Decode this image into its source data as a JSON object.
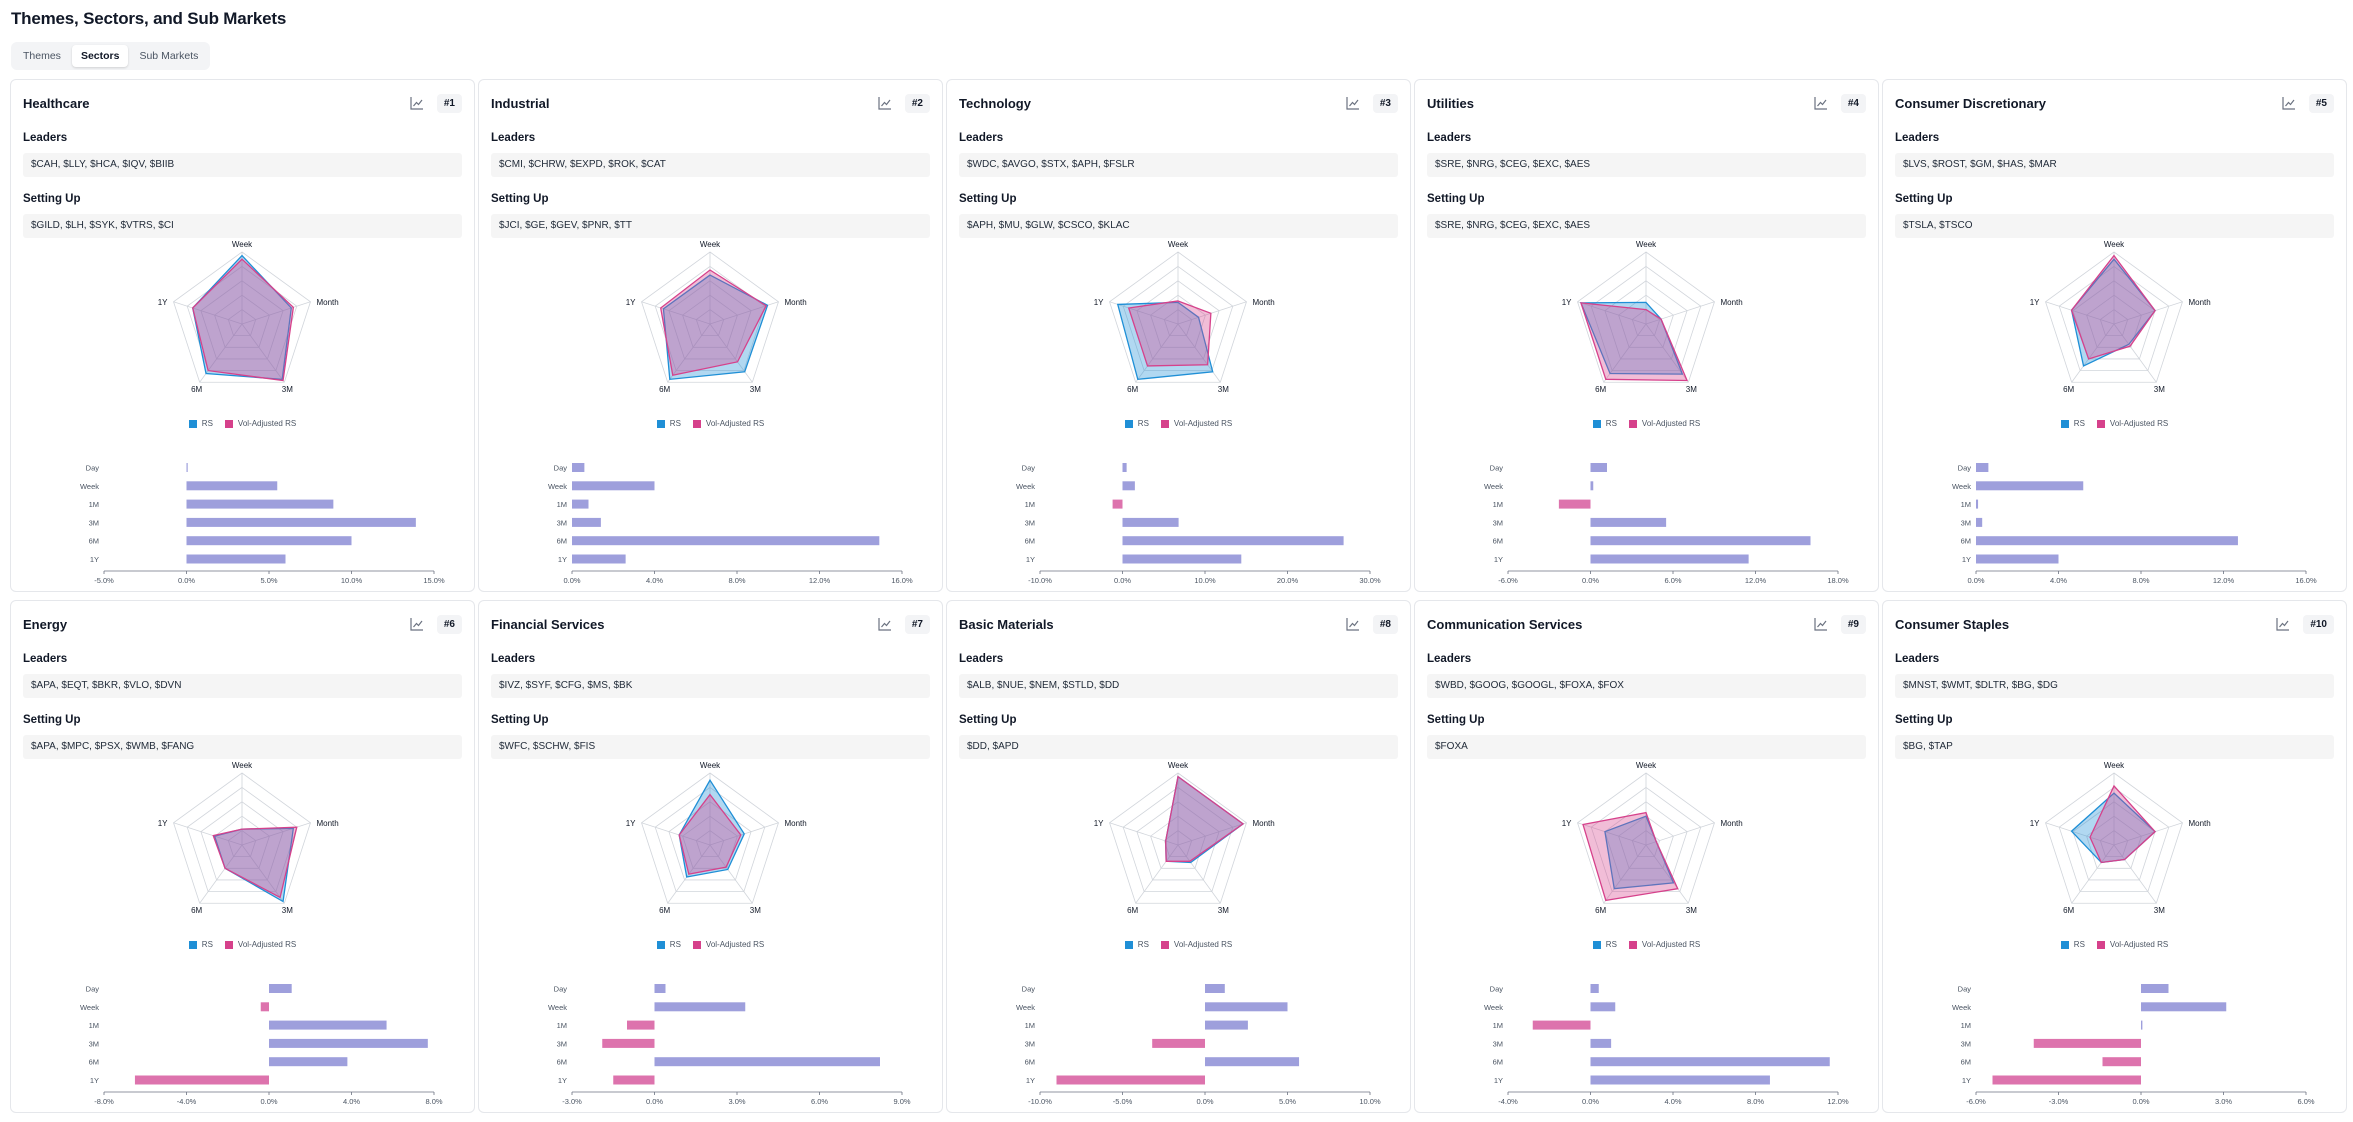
{
  "page": {
    "title": "Themes, Sectors, and Sub Markets"
  },
  "tabs": [
    {
      "label": "Themes",
      "active": false
    },
    {
      "label": "Sectors",
      "active": true
    },
    {
      "label": "Sub Markets",
      "active": false
    }
  ],
  "labels": {
    "leaders": "Leaders",
    "setting_up": "Setting Up"
  },
  "legend": {
    "rs": "RS",
    "vol_adjusted_rs": "Vol-Adjusted RS"
  },
  "colors": {
    "rs": "#1f8fd6",
    "vol_rs": "#d6418b",
    "bar_positive": "#9e9fdc",
    "bar_negative": "#dd73ad"
  },
  "radar_axes": [
    "Week",
    "Month",
    "3M",
    "6M",
    "1Y"
  ],
  "bar_categories": [
    "Day",
    "Week",
    "1M",
    "3M",
    "6M",
    "1Y"
  ],
  "sectors": [
    {
      "name": "Healthcare",
      "rank": "#1",
      "leaders": "$CAH, $LLY, $HCA, $IQV, $BIIB",
      "setting_up": "$GILD, $LH, $SYK, $VTRS, $CI",
      "radar": {
        "rs": [
          0.95,
          0.72,
          0.95,
          0.85,
          0.72
        ],
        "vol_rs": [
          0.9,
          0.75,
          0.97,
          0.8,
          0.72
        ]
      },
      "bars": {
        "values": [
          0.05,
          5.5,
          8.9,
          13.9,
          10.0,
          6.0
        ],
        "xlim": [
          -5,
          15
        ],
        "ticks": [
          "-5.0%",
          "0.0%",
          "5.0%",
          "10.0%",
          "15.0%"
        ]
      }
    },
    {
      "name": "Industrial",
      "rank": "#2",
      "leaders": "$CMI, $CHRW, $EXPD, $ROK, $CAT",
      "setting_up": "$JCI, $GE, $GEV, $PNR, $TT",
      "radar": {
        "rs": [
          0.68,
          0.84,
          0.82,
          0.95,
          0.68
        ],
        "vol_rs": [
          0.75,
          0.82,
          0.65,
          0.88,
          0.72
        ]
      },
      "bars": {
        "values": [
          0.6,
          4.0,
          0.8,
          1.4,
          14.9,
          2.6
        ],
        "xlim": [
          0,
          16
        ],
        "ticks": [
          "0.0%",
          "4.0%",
          "8.0%",
          "12.0%",
          "16.0%"
        ]
      }
    },
    {
      "name": "Technology",
      "rank": "#3",
      "leaders": "$WDC, $AVGO, $STX, $APH, $FSLR",
      "setting_up": "$APH, $MU, $GLW, $CSCO, $KLAC",
      "radar": {
        "rs": [
          0.3,
          0.3,
          0.82,
          0.95,
          0.88
        ],
        "vol_rs": [
          0.32,
          0.48,
          0.7,
          0.72,
          0.72
        ]
      },
      "bars": {
        "values": [
          0.5,
          1.5,
          -1.2,
          6.8,
          26.8,
          14.4
        ],
        "xlim": [
          -10,
          30
        ],
        "ticks": [
          "-10.0%",
          "0.0%",
          "10.0%",
          "20.0%",
          "30.0%"
        ]
      }
    },
    {
      "name": "Utilities",
      "rank": "#4",
      "leaders": "$SRE, $NRG, $CEG, $EXC, $AES",
      "setting_up": "$SRE, $NRG, $CEG, $EXC, $AES",
      "radar": {
        "rs": [
          0.3,
          0.22,
          0.86,
          0.85,
          0.95
        ],
        "vol_rs": [
          0.2,
          0.22,
          0.97,
          0.95,
          0.95
        ]
      },
      "bars": {
        "values": [
          1.2,
          0.2,
          -2.3,
          5.5,
          16.0,
          11.5
        ],
        "xlim": [
          -6,
          18
        ],
        "ticks": [
          "-6.0%",
          "0.0%",
          "6.0%",
          "12.0%",
          "18.0%"
        ]
      }
    },
    {
      "name": "Consumer Discretionary",
      "rank": "#5",
      "leaders": "$LVS, $ROST, $GM, $HAS, $MAR",
      "setting_up": "$TSLA, $TSCO",
      "radar": {
        "rs": [
          0.9,
          0.6,
          0.35,
          0.72,
          0.62
        ],
        "vol_rs": [
          0.95,
          0.6,
          0.38,
          0.6,
          0.62
        ]
      },
      "bars": {
        "values": [
          0.6,
          5.2,
          0.1,
          0.3,
          12.7,
          4.0
        ],
        "xlim": [
          0,
          16
        ],
        "ticks": [
          "0.0%",
          "4.0%",
          "8.0%",
          "12.0%",
          "16.0%"
        ]
      }
    },
    {
      "name": "Energy",
      "rank": "#6",
      "leaders": "$APA, $EQT, $BKR, $VLO, $DVN",
      "setting_up": "$APA, $MPC, $PSX, $WMB, $FANG",
      "radar": {
        "rs": [
          0.22,
          0.75,
          0.97,
          0.4,
          0.4
        ],
        "vol_rs": [
          0.22,
          0.8,
          0.9,
          0.4,
          0.42
        ]
      },
      "bars": {
        "values": [
          1.1,
          -0.4,
          5.7,
          7.7,
          3.8,
          -6.5
        ],
        "xlim": [
          -8,
          8
        ],
        "ticks": [
          "-8.0%",
          "-4.0%",
          "0.0%",
          "4.0%",
          "8.0%"
        ]
      }
    },
    {
      "name": "Financial Services",
      "rank": "#7",
      "leaders": "$IVZ, $SYF, $CFG, $MS, $BK",
      "setting_up": "$WFC, $SCHW, $FIS",
      "radar": {
        "rs": [
          0.9,
          0.5,
          0.42,
          0.55,
          0.45
        ],
        "vol_rs": [
          0.7,
          0.45,
          0.38,
          0.5,
          0.45
        ]
      },
      "bars": {
        "values": [
          0.4,
          3.3,
          -1.0,
          -1.9,
          8.2,
          -1.5
        ],
        "xlim": [
          -3,
          9
        ],
        "ticks": [
          "-3.0%",
          "0.0%",
          "3.0%",
          "6.0%",
          "9.0%"
        ]
      }
    },
    {
      "name": "Basic Materials",
      "rank": "#8",
      "leaders": "$ALB, $NUE, $NEM, $STLD, $DD",
      "setting_up": "$DD, $APD",
      "radar": {
        "rs": [
          0.95,
          0.95,
          0.3,
          0.28,
          0.18
        ],
        "vol_rs": [
          0.95,
          0.95,
          0.28,
          0.28,
          0.18
        ]
      },
      "bars": {
        "values": [
          1.2,
          5.0,
          2.6,
          -3.2,
          5.7,
          -9.0
        ],
        "xlim": [
          -10,
          10
        ],
        "ticks": [
          "-10.0%",
          "-5.0%",
          "0.0%",
          "5.0%",
          "10.0%"
        ]
      }
    },
    {
      "name": "Communication Services",
      "rank": "#9",
      "leaders": "$WBD, $GOOG, $GOOGL, $FOXA, $FOX",
      "setting_up": "$FOXA",
      "radar": {
        "rs": [
          0.4,
          0.15,
          0.65,
          0.75,
          0.6
        ],
        "vol_rs": [
          0.45,
          0.15,
          0.75,
          0.95,
          0.92
        ]
      },
      "bars": {
        "values": [
          0.4,
          1.2,
          -2.8,
          1.0,
          11.6,
          8.7
        ],
        "xlim": [
          -4,
          12
        ],
        "ticks": [
          "-4.0%",
          "0.0%",
          "4.0%",
          "8.0%",
          "12.0%"
        ]
      }
    },
    {
      "name": "Consumer Staples",
      "rank": "#10",
      "leaders": "$MNST, $WMT, $DLTR, $BG, $DG",
      "setting_up": "$BG, $TAP",
      "radar": {
        "rs": [
          0.72,
          0.6,
          0.25,
          0.3,
          0.62
        ],
        "vol_rs": [
          0.82,
          0.6,
          0.25,
          0.3,
          0.35
        ]
      },
      "bars": {
        "values": [
          1.0,
          3.1,
          0.05,
          -3.9,
          -1.4,
          -5.4
        ],
        "xlim": [
          -6,
          6
        ],
        "ticks": [
          "-6.0%",
          "-3.0%",
          "0.0%",
          "3.0%",
          "6.0%"
        ]
      }
    }
  ]
}
